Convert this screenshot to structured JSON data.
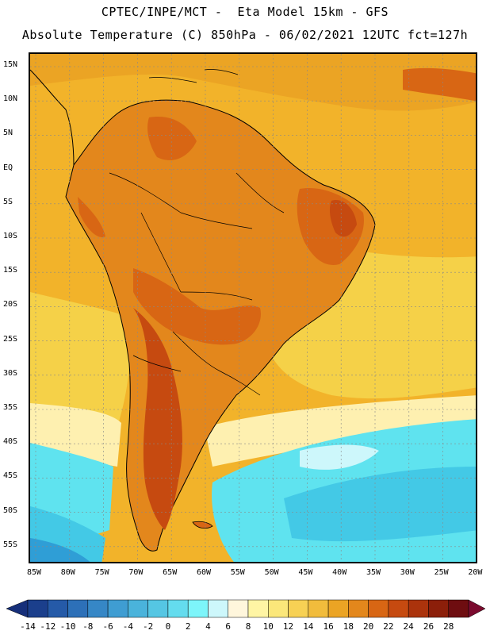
{
  "header": {
    "line1": "CPTEC/INPE/MCT -  Eta Model 15km - GFS",
    "line2": "Absolute Temperature (C) 850hPa - 06/02/2021 12UTC fct=127h"
  },
  "map": {
    "lat_labels": [
      "15N",
      "10N",
      "5N",
      "EQ",
      "5S",
      "10S",
      "15S",
      "20S",
      "25S",
      "30S",
      "35S",
      "40S",
      "45S",
      "50S",
      "55S"
    ],
    "lon_labels": [
      "85W",
      "80W",
      "75W",
      "70W",
      "65W",
      "60W",
      "55W",
      "50W",
      "45W",
      "40W",
      "35W",
      "30W",
      "25W",
      "20W"
    ],
    "colors": {
      "ocean_tropical": "#f2b32a",
      "warm": "#e8981c",
      "hot": "#d86a14",
      "hottest": "#b44810",
      "mid": "#f5d148",
      "cool": "#fef0b0",
      "cold": "#5fe3ef",
      "colder": "#43c9e6",
      "coldest": "#2f9ed6"
    }
  },
  "colorbar": {
    "levels": [
      "-14",
      "-12",
      "-10",
      "-8",
      "-6",
      "-4",
      "-2",
      "0",
      "2",
      "4",
      "6",
      "8",
      "10",
      "12",
      "14",
      "16",
      "18",
      "20",
      "22",
      "24",
      "26",
      "28"
    ],
    "colors": [
      "#1b3f8c",
      "#255aa8",
      "#2d70b8",
      "#3687c6",
      "#3f9dd2",
      "#4ab3db",
      "#55c6e3",
      "#64dcee",
      "#7df5fa",
      "#cdf7fb",
      "#fff6dc",
      "#fff5a4",
      "#fbe77a",
      "#f7d154",
      "#f1bc3c",
      "#eba424",
      "#e3871c",
      "#d86614",
      "#c64a10",
      "#ab330c",
      "#8c1f0a",
      "#6e0d10"
    ],
    "under_color": "#162f7a",
    "over_color": "#7a0a2e"
  }
}
